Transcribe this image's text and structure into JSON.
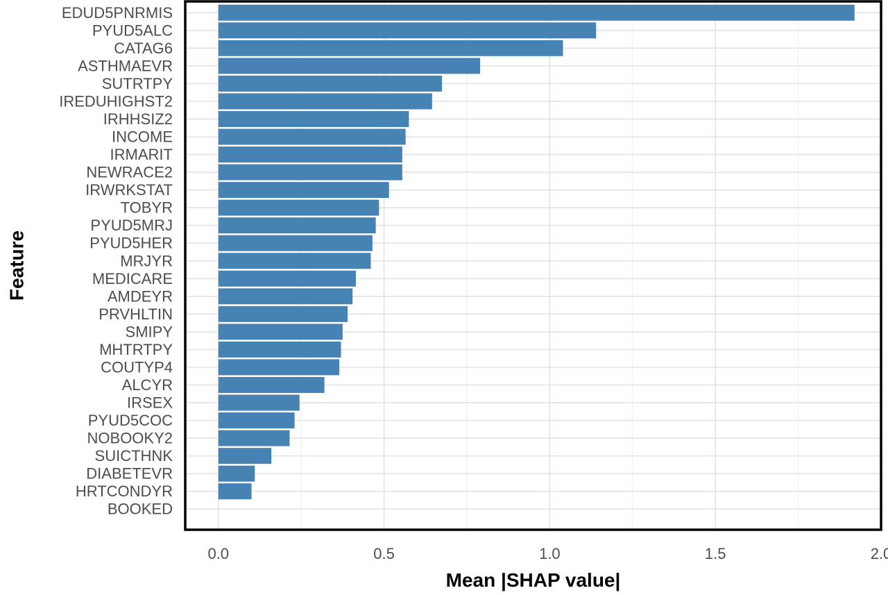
{
  "chart_data": {
    "type": "bar",
    "orientation": "horizontal",
    "title": "",
    "xlabel": "Mean |SHAP value|",
    "ylabel": "Feature",
    "xlim": [
      -0.1,
      2.0
    ],
    "xticks": [
      0.0,
      0.5,
      1.0,
      1.5,
      2.0
    ],
    "xtick_labels": [
      "0.0",
      "0.5",
      "1.0",
      "1.5",
      "2.0"
    ],
    "grid": true,
    "legend": "none",
    "bar_color": "#4682B4",
    "categories": [
      "EDUD5PNRMIS",
      "PYUD5ALC",
      "CATAG6",
      "ASTHMAEVR",
      "SUTRTPY",
      "IREDUHIGHST2",
      "IRHHSIZ2",
      "INCOME",
      "IRMARIT",
      "NEWRACE2",
      "IRWRKSTAT",
      "TOBYR",
      "PYUD5MRJ",
      "PYUD5HER",
      "MRJYR",
      "MEDICARE",
      "AMDEYR",
      "PRVHLTIN",
      "SMIPY",
      "MHTRTPY",
      "COUTYP4",
      "ALCYR",
      "IRSEX",
      "PYUD5COC",
      "NOBOOKY2",
      "SUICTHNK",
      "DIABETEVR",
      "HRTCONDYR",
      "BOOKED"
    ],
    "values": [
      1.92,
      1.14,
      1.04,
      0.79,
      0.675,
      0.645,
      0.575,
      0.565,
      0.555,
      0.555,
      0.515,
      0.485,
      0.475,
      0.465,
      0.46,
      0.415,
      0.405,
      0.39,
      0.375,
      0.37,
      0.365,
      0.32,
      0.245,
      0.23,
      0.215,
      0.16,
      0.11,
      0.1,
      0.0
    ]
  }
}
